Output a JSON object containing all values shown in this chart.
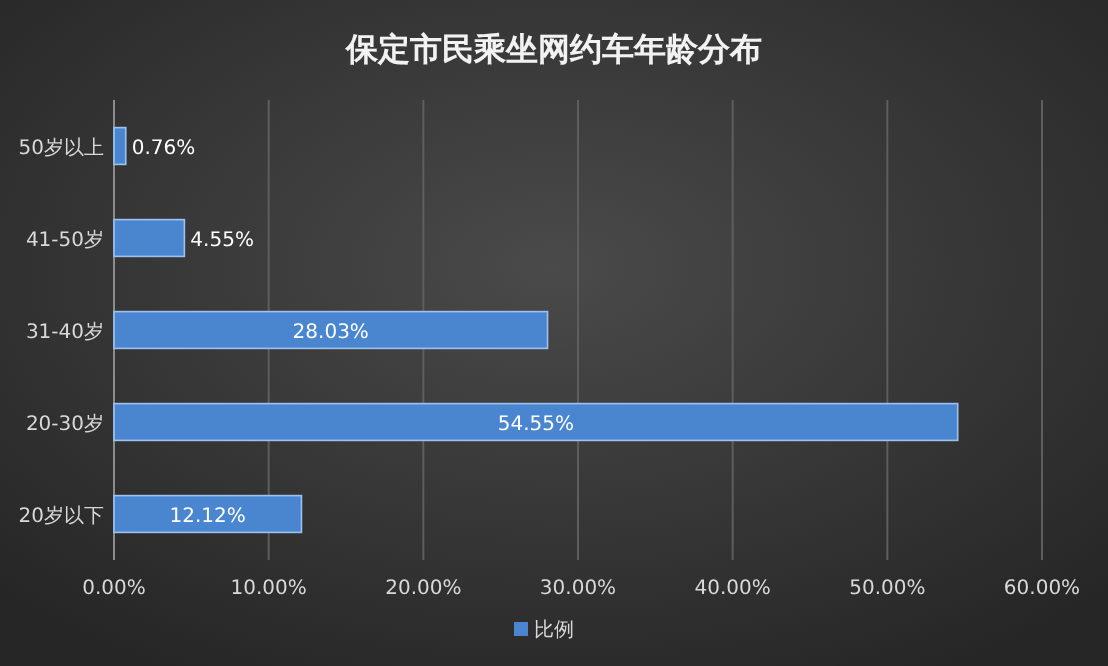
{
  "chart_data": {
    "type": "bar",
    "orientation": "horizontal",
    "title": "保定市民乘坐网约车年龄分布",
    "categories": [
      "50岁以上",
      "41-50岁",
      "31-40岁",
      "20-30岁",
      "20岁以下"
    ],
    "series": [
      {
        "name": "比例",
        "color": "#4a86cf",
        "values": [
          0.76,
          4.55,
          28.03,
          54.55,
          12.12
        ],
        "value_labels": [
          "0.76%",
          "4.55%",
          "28.03%",
          "54.55%",
          "12.12%"
        ]
      }
    ],
    "xlim": [
      0,
      60
    ],
    "xticks": [
      {
        "value": 0,
        "label": "0.00%"
      },
      {
        "value": 10,
        "label": "10.00%"
      },
      {
        "value": 20,
        "label": "20.00%"
      },
      {
        "value": 30,
        "label": "30.00%"
      },
      {
        "value": 40,
        "label": "40.00%"
      },
      {
        "value": 50,
        "label": "50.00%"
      },
      {
        "value": 60,
        "label": "60.00%"
      }
    ],
    "grid": "x",
    "legend": "bottom"
  }
}
